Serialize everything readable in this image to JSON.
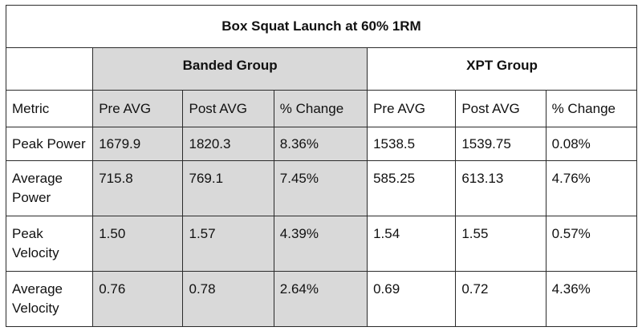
{
  "chart_data": {
    "type": "table",
    "title": "Box Squat Launch at 60% 1RM",
    "groups": [
      "Banded Group",
      "XPT Group"
    ],
    "columns": [
      "Metric",
      "Pre AVG",
      "Post AVG",
      "% Change",
      "Pre AVG",
      "Post AVG",
      "% Change"
    ],
    "rows": [
      [
        "Peak Power",
        "1679.9",
        "1820.3",
        "8.36%",
        "1538.5",
        "1539.75",
        "0.08%"
      ],
      [
        "Average Power",
        "715.8",
        "769.1",
        "7.45%",
        "585.25",
        "613.13",
        "4.76%"
      ],
      [
        "Peak Velocity",
        "1.50",
        "1.57",
        "4.39%",
        "1.54",
        "1.55",
        "0.57%"
      ],
      [
        "Average Velocity",
        "0.76",
        "0.78",
        "2.64%",
        "0.69",
        "0.72",
        "4.36%"
      ]
    ],
    "shaded_group_color": "#d9d9d9"
  }
}
